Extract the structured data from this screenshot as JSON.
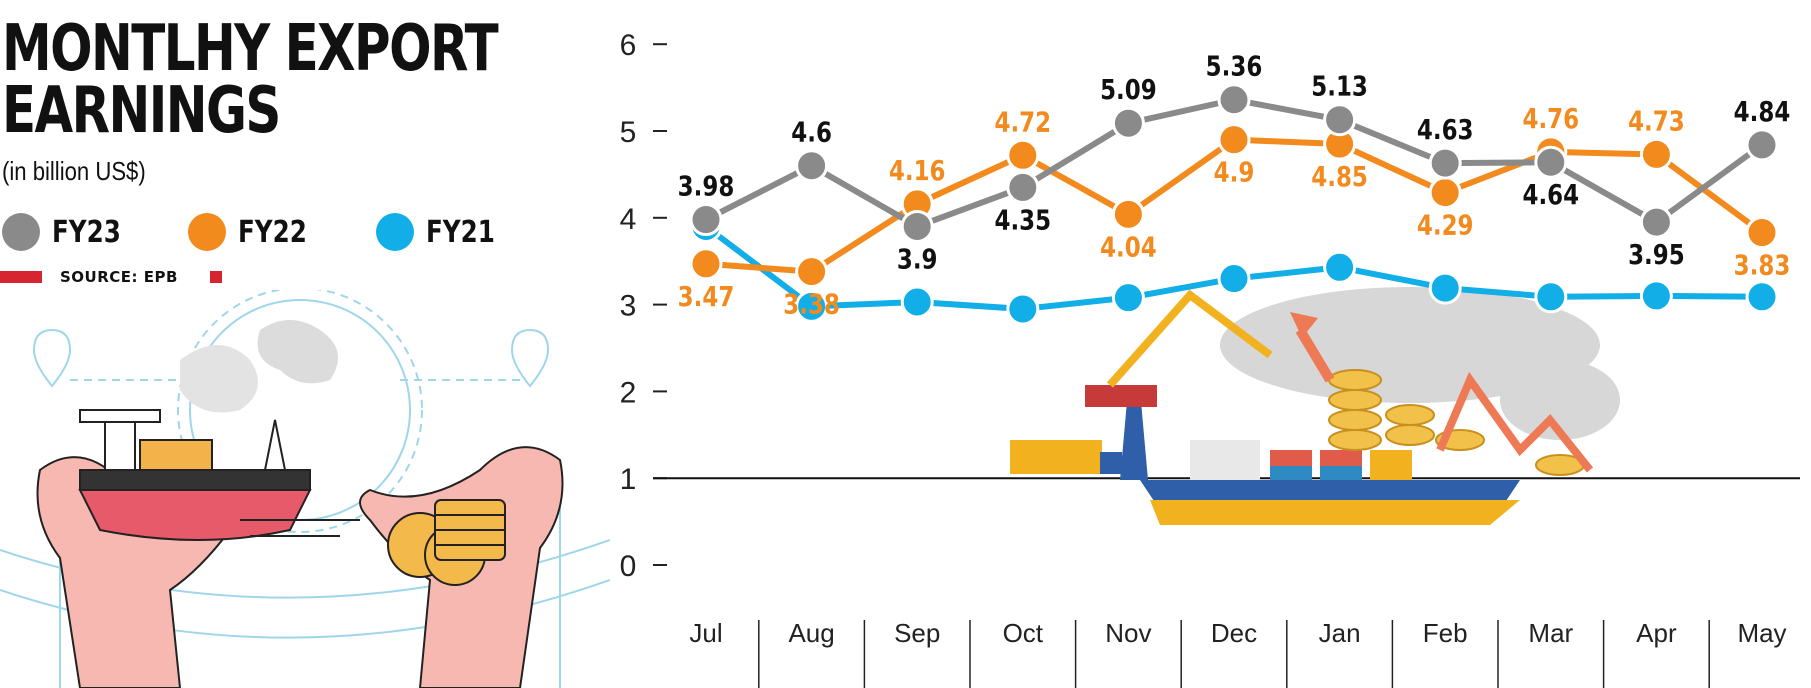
{
  "title_line1": "MONTLHY EXPORT",
  "title_line2": "EARNINGS",
  "subtitle": "(in billion US$)",
  "source": "SOURCE: EPB",
  "legend": [
    {
      "label": "FY23",
      "color": "#8a8a8a"
    },
    {
      "label": "FY22",
      "color": "#f28a1e"
    },
    {
      "label": "FY21",
      "color": "#11aee8"
    }
  ],
  "chart_data": {
    "type": "line",
    "categories": [
      "Jul",
      "Aug",
      "Sep",
      "Oct",
      "Nov",
      "Dec",
      "Jan",
      "Feb",
      "Mar",
      "Apr",
      "May"
    ],
    "ylim": [
      0,
      6
    ],
    "yticks": [
      0,
      1,
      2,
      3,
      4,
      5,
      6
    ],
    "grid": false,
    "series": [
      {
        "name": "FY23",
        "color": "#8a8a8a",
        "label_color": "#111111",
        "values": [
          3.98,
          4.6,
          3.9,
          4.35,
          5.09,
          5.36,
          5.13,
          4.63,
          4.64,
          3.95,
          4.84
        ],
        "labels": [
          "3.98",
          "4.6",
          "3.9",
          "4.35",
          "5.09",
          "5.36",
          "5.13",
          "4.63",
          "4.64",
          "3.95",
          "4.84"
        ]
      },
      {
        "name": "FY22",
        "color": "#f28a1e",
        "label_color": "#f28a1e",
        "values": [
          3.47,
          3.38,
          4.16,
          4.72,
          4.04,
          4.9,
          4.85,
          4.29,
          4.76,
          4.73,
          3.83
        ],
        "labels": [
          "3.47",
          "3.38",
          "4.16",
          "4.72",
          "4.04",
          "4.9",
          "4.85",
          "4.29",
          "4.76",
          "4.73",
          "3.83"
        ]
      },
      {
        "name": "FY21",
        "color": "#11aee8",
        "values": [
          3.9,
          2.98,
          3.03,
          2.95,
          3.08,
          3.3,
          3.43,
          3.19,
          3.09,
          3.1,
          3.09
        ]
      }
    ]
  }
}
